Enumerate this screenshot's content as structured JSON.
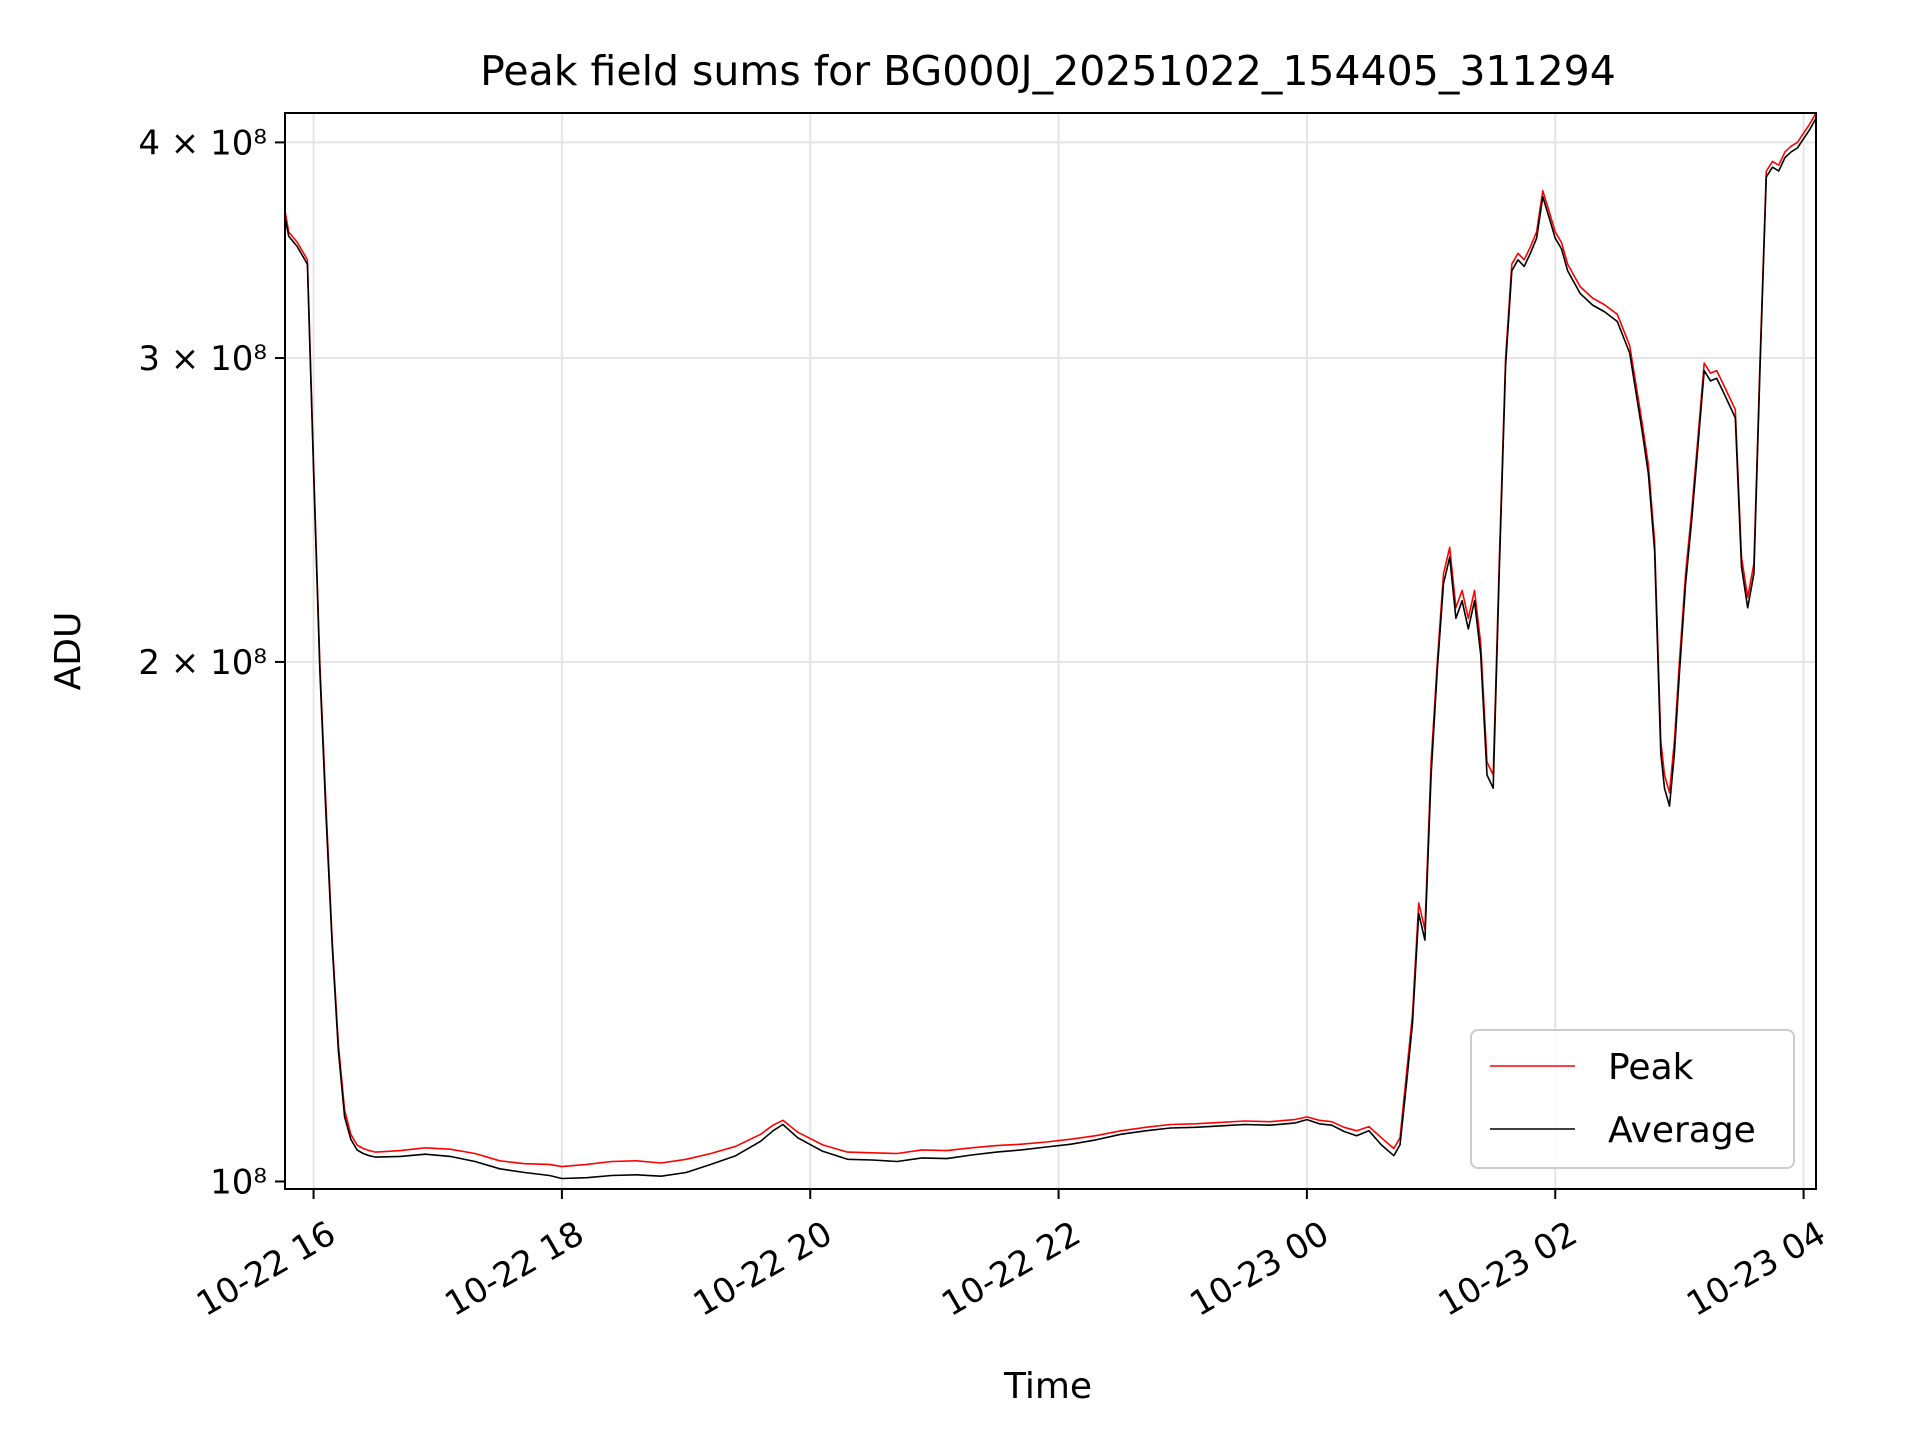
{
  "chart_data": {
    "type": "line",
    "title": "Peak field sums for BG000J_20251022_154405_311294",
    "xlabel": "Time",
    "ylabel": "ADU",
    "x_unit": "hours",
    "x_ticks": [
      {
        "value": 16,
        "label": "10-22 16"
      },
      {
        "value": 18,
        "label": "10-22 18"
      },
      {
        "value": 20,
        "label": "10-22 20"
      },
      {
        "value": 22,
        "label": "10-22 22"
      },
      {
        "value": 24,
        "label": "10-23 00"
      },
      {
        "value": 26,
        "label": "10-23 02"
      },
      {
        "value": 28,
        "label": "10-23 04"
      }
    ],
    "y_ticks": [
      {
        "value": 100000000,
        "label": "10⁸"
      },
      {
        "value": 200000000,
        "label": "2 × 10⁸"
      },
      {
        "value": 300000000,
        "label": "3 × 10⁸"
      },
      {
        "value": 400000000,
        "label": "4 × 10⁸"
      }
    ],
    "y_scale": "log",
    "xlim": [
      15.77,
      28.1
    ],
    "ylim": [
      99000000,
      416000000
    ],
    "grid": true,
    "legend_position": "lower-right",
    "colors": {
      "Peak": "#ff0000",
      "Average": "#000000"
    },
    "series": [
      {
        "name": "Peak",
        "x": [
          15.77,
          15.8,
          15.87,
          15.95,
          16.0,
          16.05,
          16.1,
          16.15,
          16.2,
          16.25,
          16.3,
          16.35,
          16.4,
          16.45,
          16.5,
          16.7,
          16.9,
          17.1,
          17.3,
          17.5,
          17.7,
          17.9,
          18.0,
          18.2,
          18.4,
          18.6,
          18.8,
          19.0,
          19.2,
          19.4,
          19.6,
          19.7,
          19.78,
          19.9,
          20.1,
          20.3,
          20.5,
          20.7,
          20.9,
          21.1,
          21.3,
          21.5,
          21.7,
          21.9,
          22.1,
          22.3,
          22.5,
          22.7,
          22.9,
          23.1,
          23.3,
          23.5,
          23.7,
          23.9,
          24.0,
          24.1,
          24.2,
          24.3,
          24.4,
          24.5,
          24.6,
          24.7,
          24.75,
          24.8,
          24.85,
          24.9,
          24.95,
          25.0,
          25.05,
          25.1,
          25.15,
          25.2,
          25.25,
          25.3,
          25.35,
          25.4,
          25.45,
          25.5,
          25.55,
          25.6,
          25.65,
          25.7,
          25.75,
          25.8,
          25.85,
          25.9,
          25.95,
          26.0,
          26.05,
          26.1,
          26.2,
          26.3,
          26.4,
          26.5,
          26.6,
          26.7,
          26.75,
          26.8,
          26.85,
          26.88,
          26.92,
          26.96,
          27.0,
          27.05,
          27.1,
          27.15,
          27.2,
          27.25,
          27.3,
          27.35,
          27.4,
          27.45,
          27.5,
          27.55,
          27.6,
          27.65,
          27.7,
          27.75,
          27.8,
          27.85,
          27.9,
          27.95,
          28.0,
          28.05,
          28.1
        ],
        "y": [
          365000000,
          355000000,
          350000000,
          342000000,
          260000000,
          200000000,
          165000000,
          138000000,
          120000000,
          110000000,
          106500000,
          105000000,
          104500000,
          104200000,
          104000000,
          104200000,
          104600000,
          104400000,
          103800000,
          102800000,
          102400000,
          102300000,
          102000000,
          102300000,
          102700000,
          102800000,
          102500000,
          103000000,
          103800000,
          104800000,
          106500000,
          107800000,
          108500000,
          106800000,
          105000000,
          104000000,
          103900000,
          103800000,
          104300000,
          104200000,
          104600000,
          104900000,
          105100000,
          105400000,
          105800000,
          106300000,
          107000000,
          107500000,
          107900000,
          108000000,
          108200000,
          108400000,
          108300000,
          108600000,
          109000000,
          108500000,
          108300000,
          107500000,
          107000000,
          107600000,
          106000000,
          104500000,
          106000000,
          115000000,
          125000000,
          145000000,
          140000000,
          175000000,
          200000000,
          225000000,
          233000000,
          215000000,
          220000000,
          212000000,
          220000000,
          205000000,
          175000000,
          172000000,
          230000000,
          300000000,
          340000000,
          345000000,
          342000000,
          348000000,
          355000000,
          375000000,
          365000000,
          355000000,
          350000000,
          340000000,
          330000000,
          325000000,
          322000000,
          318000000,
          305000000,
          275000000,
          260000000,
          235000000,
          180000000,
          172000000,
          168000000,
          180000000,
          200000000,
          225000000,
          245000000,
          270000000,
          298000000,
          294000000,
          295000000,
          290000000,
          285000000,
          280000000,
          230000000,
          218000000,
          228000000,
          300000000,
          385000000,
          390000000,
          388000000,
          395000000,
          398000000,
          400000000,
          405000000,
          410000000,
          416000000
        ]
      },
      {
        "name": "Average",
        "x": [
          15.77,
          15.8,
          15.87,
          15.95,
          16.0,
          16.05,
          16.1,
          16.15,
          16.2,
          16.25,
          16.3,
          16.35,
          16.4,
          16.45,
          16.5,
          16.7,
          16.9,
          17.1,
          17.3,
          17.5,
          17.7,
          17.9,
          18.0,
          18.2,
          18.4,
          18.6,
          18.8,
          19.0,
          19.2,
          19.4,
          19.6,
          19.7,
          19.78,
          19.9,
          20.1,
          20.3,
          20.5,
          20.7,
          20.9,
          21.1,
          21.3,
          21.5,
          21.7,
          21.9,
          22.1,
          22.3,
          22.5,
          22.7,
          22.9,
          23.1,
          23.3,
          23.5,
          23.7,
          23.9,
          24.0,
          24.1,
          24.2,
          24.3,
          24.4,
          24.5,
          24.6,
          24.7,
          24.75,
          24.8,
          24.85,
          24.9,
          24.95,
          25.0,
          25.05,
          25.1,
          25.15,
          25.2,
          25.25,
          25.3,
          25.35,
          25.4,
          25.45,
          25.5,
          25.55,
          25.6,
          25.65,
          25.7,
          25.75,
          25.8,
          25.85,
          25.9,
          25.95,
          26.0,
          26.05,
          26.1,
          26.2,
          26.3,
          26.4,
          26.5,
          26.6,
          26.7,
          26.75,
          26.8,
          26.85,
          26.88,
          26.92,
          26.96,
          27.0,
          27.05,
          27.1,
          27.15,
          27.2,
          27.25,
          27.3,
          27.35,
          27.4,
          27.45,
          27.5,
          27.55,
          27.6,
          27.65,
          27.7,
          27.75,
          27.8,
          27.85,
          27.9,
          27.95,
          28.0,
          28.05,
          28.1
        ],
        "y": [
          362000000,
          353000000,
          348000000,
          340000000,
          258000000,
          198000000,
          163000000,
          137000000,
          119000000,
          109000000,
          105800000,
          104300000,
          103800000,
          103500000,
          103300000,
          103400000,
          103700000,
          103400000,
          102700000,
          101700000,
          101200000,
          100800000,
          100400000,
          100500000,
          100800000,
          100900000,
          100700000,
          101200000,
          102300000,
          103500000,
          105500000,
          107000000,
          107900000,
          106000000,
          104100000,
          103000000,
          102900000,
          102700000,
          103200000,
          103100000,
          103600000,
          104000000,
          104300000,
          104700000,
          105100000,
          105700000,
          106500000,
          107000000,
          107400000,
          107500000,
          107700000,
          107900000,
          107800000,
          108100000,
          108600000,
          108000000,
          107800000,
          106900000,
          106300000,
          107000000,
          105000000,
          103500000,
          105000000,
          113500000,
          123500000,
          143000000,
          138000000,
          172000000,
          198000000,
          222000000,
          230000000,
          212000000,
          217000000,
          209000000,
          217000000,
          202000000,
          172000000,
          169000000,
          227000000,
          297000000,
          337000000,
          342000000,
          339000000,
          345000000,
          352000000,
          372000000,
          362000000,
          352000000,
          347000000,
          337000000,
          327000000,
          322000000,
          319000000,
          315000000,
          302000000,
          272000000,
          257000000,
          232000000,
          177000000,
          169000000,
          165000000,
          177000000,
          197000000,
          222000000,
          242000000,
          267000000,
          295000000,
          291000000,
          292000000,
          287000000,
          282000000,
          277000000,
          227000000,
          215000000,
          225000000,
          297000000,
          382000000,
          387000000,
          385000000,
          392000000,
          395000000,
          397000000,
          402000000,
          407000000,
          413000000
        ]
      }
    ]
  }
}
